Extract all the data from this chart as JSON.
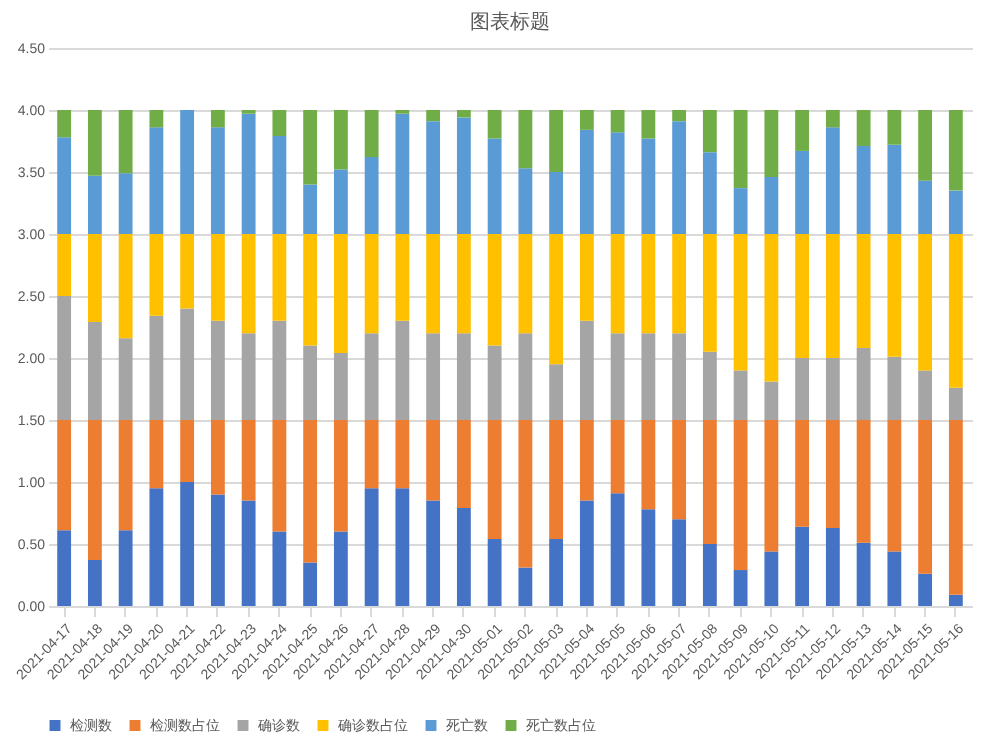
{
  "chart_data": {
    "type": "bar",
    "title": "图表标题",
    "stacked": true,
    "grid": "y",
    "legend": "bottom",
    "categories": [
      "2021-04-17",
      "2021-04-18",
      "2021-04-19",
      "2021-04-20",
      "2021-04-21",
      "2021-04-22",
      "2021-04-23",
      "2021-04-24",
      "2021-04-25",
      "2021-04-26",
      "2021-04-27",
      "2021-04-28",
      "2021-04-29",
      "2021-04-30",
      "2021-05-01",
      "2021-05-02",
      "2021-05-03",
      "2021-05-04",
      "2021-05-05",
      "2021-05-06",
      "2021-05-07",
      "2021-05-08",
      "2021-05-09",
      "2021-05-10",
      "2021-05-11",
      "2021-05-12",
      "2021-05-13",
      "2021-05-14",
      "2021-05-15",
      "2021-05-16"
    ],
    "ylim": [
      0,
      4.5
    ],
    "yticks": [
      {
        "value": 0,
        "label": "0.00"
      },
      {
        "value": 0.5,
        "label": "0.50"
      },
      {
        "value": 1,
        "label": "1.00"
      },
      {
        "value": 1.5,
        "label": "1.50"
      },
      {
        "value": 2,
        "label": "2.00"
      },
      {
        "value": 2.5,
        "label": "2.50"
      },
      {
        "value": 3,
        "label": "3.00"
      },
      {
        "value": 3.5,
        "label": "3.50"
      },
      {
        "value": 4,
        "label": "4.00"
      },
      {
        "value": 4.5,
        "label": "4.50"
      }
    ],
    "series": [
      {
        "name": "检测数",
        "color": "#4472c4",
        "values": [
          0.61,
          0.37,
          0.61,
          0.95,
          1.0,
          0.9,
          0.85,
          0.6,
          0.35,
          0.6,
          0.95,
          0.95,
          0.85,
          0.79,
          0.54,
          0.31,
          0.54,
          0.85,
          0.91,
          0.78,
          0.7,
          0.5,
          0.29,
          0.44,
          0.64,
          0.63,
          0.51,
          0.44,
          0.26,
          0.09
        ]
      },
      {
        "name": "检测数占位",
        "color": "#ed7d31",
        "values": [
          0.89,
          1.13,
          0.89,
          0.55,
          0.5,
          0.6,
          0.65,
          0.9,
          1.15,
          0.9,
          0.55,
          0.55,
          0.65,
          0.71,
          0.96,
          1.19,
          0.96,
          0.65,
          0.59,
          0.72,
          0.8,
          1.0,
          1.21,
          1.06,
          0.86,
          0.87,
          0.99,
          1.06,
          1.24,
          1.41
        ]
      },
      {
        "name": "确诊数",
        "color": "#a5a5a5",
        "values": [
          1.0,
          0.79,
          0.66,
          0.84,
          0.9,
          0.8,
          0.7,
          0.8,
          0.6,
          0.54,
          0.7,
          0.8,
          0.7,
          0.7,
          0.6,
          0.7,
          0.45,
          0.8,
          0.7,
          0.7,
          0.7,
          0.55,
          0.4,
          0.31,
          0.5,
          0.5,
          0.58,
          0.51,
          0.4,
          0.26
        ]
      },
      {
        "name": "确诊数占位",
        "color": "#ffc000",
        "values": [
          0.5,
          0.71,
          0.84,
          0.66,
          0.6,
          0.7,
          0.8,
          0.7,
          0.9,
          0.96,
          0.8,
          0.7,
          0.8,
          0.8,
          0.9,
          0.8,
          1.05,
          0.7,
          0.8,
          0.8,
          0.8,
          0.95,
          1.1,
          1.19,
          1.0,
          1.0,
          0.92,
          0.99,
          1.1,
          1.24
        ]
      },
      {
        "name": "死亡数",
        "color": "#5b9bd5",
        "values": [
          0.78,
          0.47,
          0.49,
          0.86,
          1.0,
          0.86,
          0.97,
          0.79,
          0.4,
          0.52,
          0.62,
          0.97,
          0.91,
          0.94,
          0.77,
          0.53,
          0.5,
          0.84,
          0.82,
          0.77,
          0.91,
          0.66,
          0.37,
          0.46,
          0.67,
          0.86,
          0.71,
          0.72,
          0.43,
          0.35
        ]
      },
      {
        "name": "死亡数占位",
        "color": "#70ad47",
        "values": [
          0.22,
          0.53,
          0.51,
          0.14,
          0.0,
          0.14,
          0.03,
          0.21,
          0.6,
          0.48,
          0.38,
          0.03,
          0.09,
          0.06,
          0.23,
          0.47,
          0.5,
          0.16,
          0.18,
          0.23,
          0.09,
          0.34,
          0.63,
          0.54,
          0.33,
          0.14,
          0.29,
          0.28,
          0.57,
          0.65
        ]
      }
    ]
  }
}
